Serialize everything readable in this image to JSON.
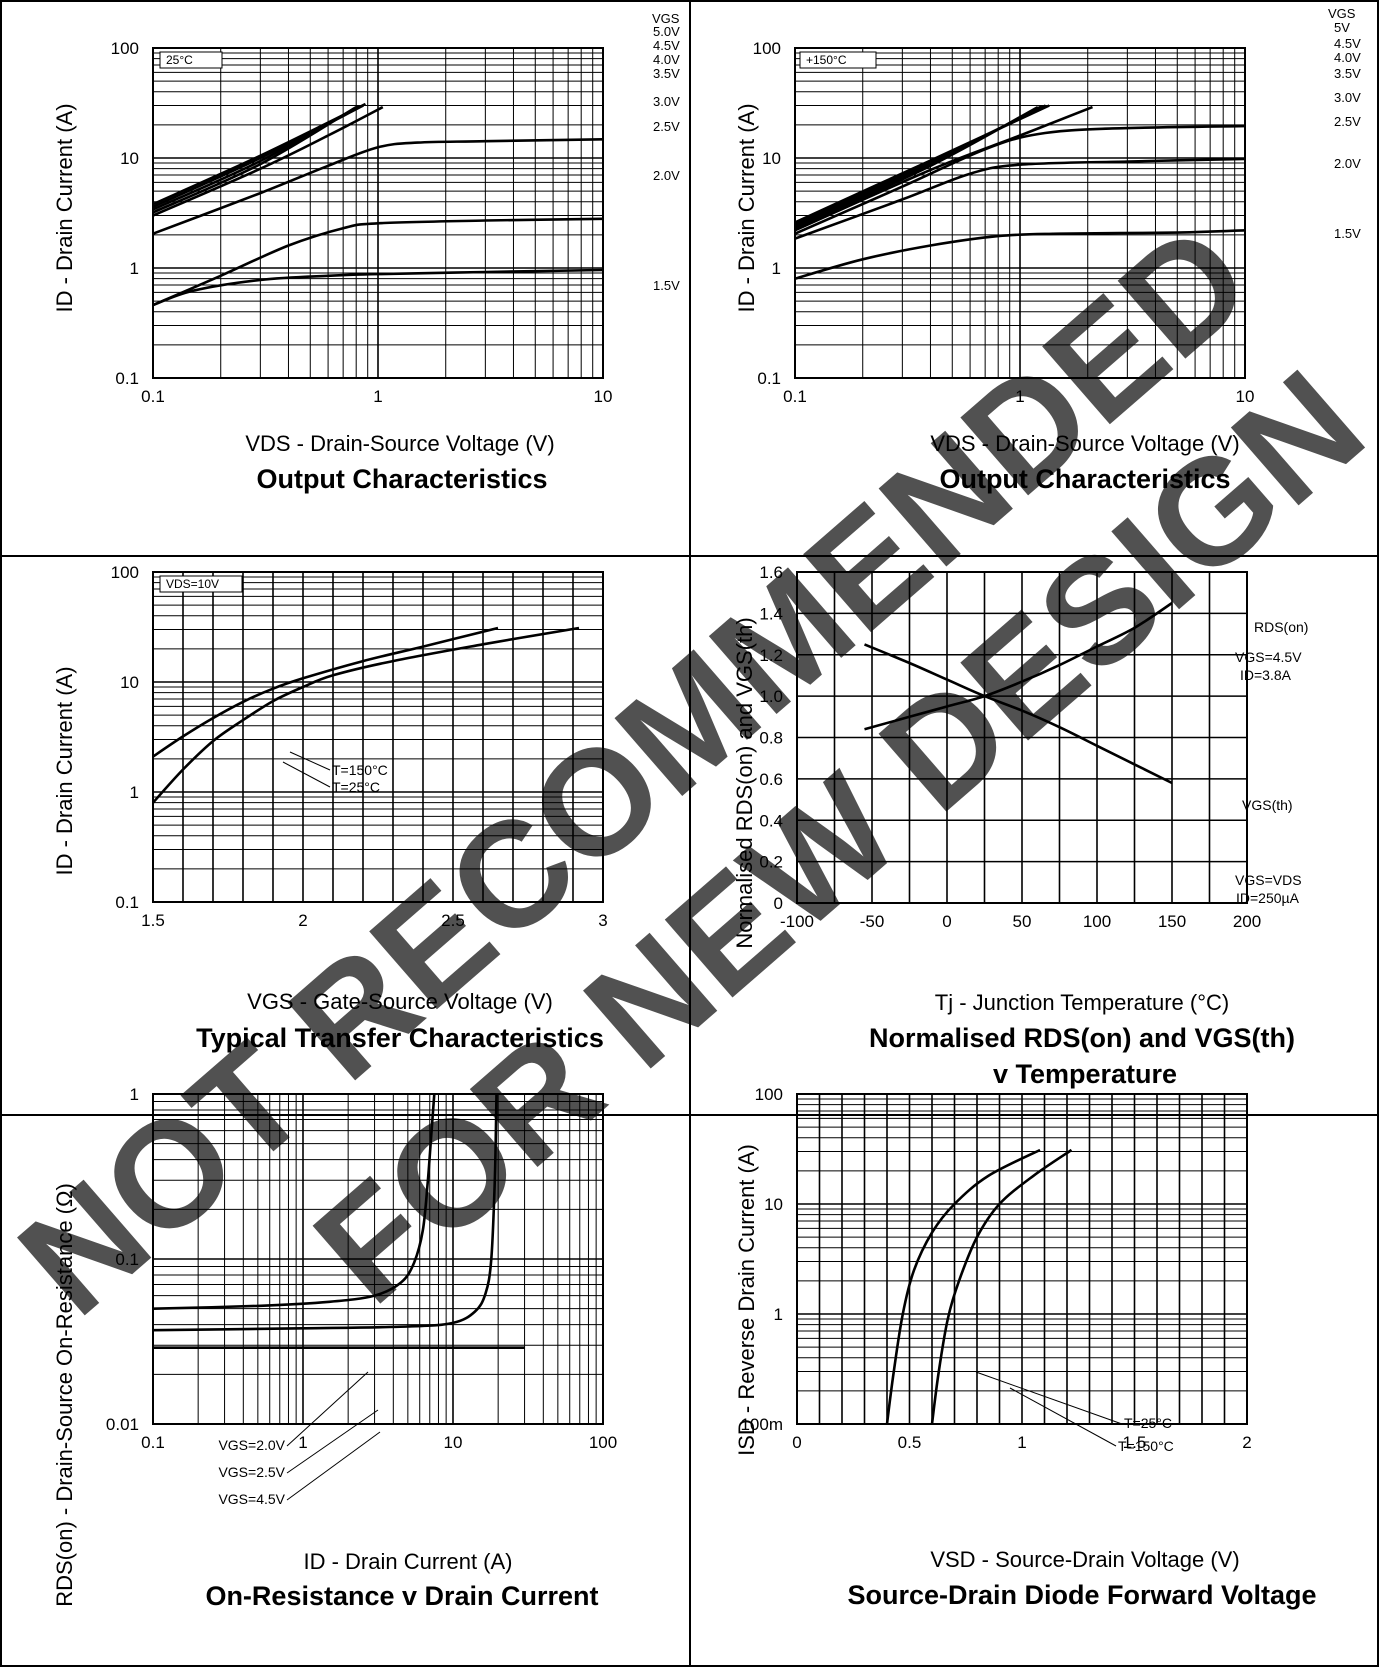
{
  "watermark": {
    "line1": "NOT RECOMMENDED",
    "line2": "FOR NEW DESIGN"
  },
  "chart_data": [
    {
      "type": "line",
      "id": "out25",
      "title": "Output Characteristics",
      "xlabel": "VDS - Drain-Source Voltage (V)",
      "ylabel": "ID - Drain Current (A)",
      "xscale": "log",
      "yscale": "log",
      "xlim": [
        0.1,
        10
      ],
      "ylim": [
        0.1,
        100
      ],
      "xticks": [
        "0.1",
        "1",
        "10"
      ],
      "yticks": [
        "0.1",
        "1",
        "10",
        "100"
      ],
      "annotations": [
        "25°C"
      ],
      "legend_header": "VGS",
      "series": [
        {
          "name": "5.0V",
          "x": [
            0.1,
            0.3,
            0.88
          ],
          "y": [
            3.8,
            10.5,
            31
          ]
        },
        {
          "name": "4.5V",
          "x": [
            0.1,
            0.3,
            0.86
          ],
          "y": [
            3.6,
            10,
            30
          ]
        },
        {
          "name": "4.0V",
          "x": [
            0.1,
            0.3,
            0.82
          ],
          "y": [
            3.4,
            9.4,
            29.5
          ]
        },
        {
          "name": "3.5V",
          "x": [
            0.1,
            0.3,
            0.8
          ],
          "y": [
            3.2,
            8.8,
            29
          ]
        },
        {
          "name": "3.0V",
          "x": [
            0.1,
            0.3,
            0.6,
            1.05
          ],
          "y": [
            3.0,
            8.0,
            16,
            29
          ]
        },
        {
          "name": "2.5V",
          "x": [
            0.1,
            0.3,
            0.6,
            1.0,
            1.5,
            3,
            10
          ],
          "y": [
            2.05,
            4.8,
            8.5,
            12.5,
            13.8,
            14.2,
            14.8
          ]
        },
        {
          "name": "2.0V",
          "x": [
            0.1,
            0.2,
            0.4,
            0.7,
            1.0,
            3,
            10
          ],
          "y": [
            0.46,
            0.85,
            1.6,
            2.3,
            2.55,
            2.7,
            2.8
          ]
        },
        {
          "name": "1.5V",
          "x": [
            0.1,
            0.15,
            0.3,
            0.6,
            1.0,
            3,
            10
          ],
          "y": [
            0.46,
            0.62,
            0.78,
            0.85,
            0.88,
            0.92,
            0.96
          ]
        }
      ]
    },
    {
      "type": "line",
      "id": "out150",
      "title": "Output Characteristics",
      "xlabel": "VDS - Drain-Source Voltage (V)",
      "ylabel": "ID - Drain Current (A)",
      "xscale": "log",
      "yscale": "log",
      "xlim": [
        0.1,
        10
      ],
      "ylim": [
        0.1,
        100
      ],
      "xticks": [
        "0.1",
        "1",
        "10"
      ],
      "yticks": [
        "0.1",
        "1",
        "10",
        "100"
      ],
      "annotations": [
        "+150°C"
      ],
      "legend_header": "VGS",
      "series": [
        {
          "name": "5V",
          "x": [
            0.1,
            0.4,
            1.35
          ],
          "y": [
            2.6,
            9.5,
            30
          ]
        },
        {
          "name": "4.5V",
          "x": [
            0.1,
            0.4,
            1.3
          ],
          "y": [
            2.5,
            9.2,
            30
          ]
        },
        {
          "name": "4.0V",
          "x": [
            0.1,
            0.4,
            1.25
          ],
          "y": [
            2.4,
            8.9,
            29.5
          ]
        },
        {
          "name": "3.5V",
          "x": [
            0.1,
            0.4,
            1.2
          ],
          "y": [
            2.3,
            8.5,
            29
          ]
        },
        {
          "name": "3.0V",
          "x": [
            0.1,
            0.4,
            1.0,
            2.1
          ],
          "y": [
            2.2,
            7.8,
            16,
            29
          ]
        },
        {
          "name": "2.5V",
          "x": [
            0.1,
            0.3,
            0.7,
            1.2,
            2.5,
            10
          ],
          "y": [
            2.05,
            5.5,
            12,
            16.5,
            18.5,
            19.5
          ]
        },
        {
          "name": "2.0V",
          "x": [
            0.1,
            0.3,
            0.6,
            1.0,
            3,
            10
          ],
          "y": [
            1.85,
            4.2,
            7.2,
            8.7,
            9.3,
            9.8
          ]
        },
        {
          "name": "1.5V",
          "x": [
            0.1,
            0.2,
            0.4,
            0.8,
            1.5,
            5,
            10
          ],
          "y": [
            0.8,
            1.2,
            1.6,
            1.95,
            2.05,
            2.1,
            2.2
          ]
        }
      ]
    },
    {
      "type": "line",
      "id": "transfer",
      "title": "Typical Transfer Characteristics",
      "xlabel": "VGS - Gate-Source Voltage (V)",
      "ylabel": "ID - Drain Current (A)",
      "xscale": "linear",
      "yscale": "log",
      "xlim": [
        1.5,
        3
      ],
      "ylim": [
        0.1,
        100
      ],
      "xticks": [
        "1.5",
        "2",
        "2.5",
        "3"
      ],
      "yticks": [
        "0.1",
        "1",
        "10",
        "100"
      ],
      "annotations": [
        "VDS=10V"
      ],
      "series": [
        {
          "name": "T=150°C",
          "x": [
            1.5,
            1.6,
            1.7,
            1.8,
            1.9,
            2.0,
            2.2,
            2.4,
            2.65
          ],
          "y": [
            2.1,
            3.2,
            4.7,
            6.6,
            8.7,
            10.8,
            15.5,
            21,
            31
          ]
        },
        {
          "name": "T=25°C",
          "x": [
            1.5,
            1.6,
            1.7,
            1.8,
            1.9,
            2.0,
            2.1,
            2.3,
            2.6,
            2.92
          ],
          "y": [
            0.8,
            1.6,
            2.9,
            4.5,
            6.7,
            9.0,
            11.5,
            15.5,
            22,
            31
          ]
        }
      ]
    },
    {
      "type": "line",
      "id": "temp",
      "title": "Normalised RDS(on) and VGS(th)",
      "subtitle": "v Temperature",
      "xlabel": "Tj - Junction Temperature (°C)",
      "ylabel": "Normalised RDS(on) and VGS(th)",
      "xscale": "linear",
      "yscale": "linear",
      "xlim": [
        -100,
        200
      ],
      "ylim": [
        0,
        1.6
      ],
      "xticks": [
        "-100",
        "-50",
        "0",
        "50",
        "100",
        "150",
        "200"
      ],
      "yticks": [
        "0",
        "0.2",
        "0.4",
        "0.6",
        "0.8",
        "1.0",
        "1.2",
        "1.4",
        "1.6"
      ],
      "annotations": [
        "VGS=4.5V",
        "ID=3.8A",
        "VGS=VDS",
        "ID=250µA"
      ],
      "series": [
        {
          "name": "RDS(on)",
          "x": [
            -55,
            -25,
            0,
            25,
            50,
            75,
            100,
            125,
            150
          ],
          "y": [
            0.84,
            0.9,
            0.95,
            1.0,
            1.07,
            1.15,
            1.24,
            1.33,
            1.45
          ]
        },
        {
          "name": "VGS(th)",
          "x": [
            -55,
            -25,
            0,
            25,
            50,
            75,
            100,
            125,
            150
          ],
          "y": [
            1.25,
            1.16,
            1.08,
            1.0,
            0.93,
            0.85,
            0.76,
            0.67,
            0.58
          ]
        }
      ]
    },
    {
      "type": "line",
      "id": "onres",
      "title": "On-Resistance v Drain Current",
      "xlabel": "ID - Drain Current (A)",
      "ylabel": "RDS(on) - Drain-Source On-Resistance (Ω)",
      "xscale": "log",
      "yscale": "log",
      "xlim": [
        0.1,
        100
      ],
      "ylim": [
        0.01,
        1
      ],
      "xticks": [
        "0.1",
        "1",
        "10",
        "100"
      ],
      "yticks": [
        "0.01",
        "0.1",
        "1"
      ],
      "series": [
        {
          "name": "VGS=2.0V",
          "x": [
            0.1,
            0.5,
            1.5,
            3,
            4.5,
            5.5,
            6.3,
            6.8,
            7.2,
            7.5
          ],
          "y": [
            0.05,
            0.052,
            0.055,
            0.06,
            0.072,
            0.095,
            0.15,
            0.3,
            0.6,
            1.0
          ]
        },
        {
          "name": "VGS=2.5V",
          "x": [
            0.1,
            1,
            5,
            10,
            14,
            16.5,
            18,
            19,
            19.5
          ],
          "y": [
            0.037,
            0.038,
            0.039,
            0.041,
            0.048,
            0.062,
            0.1,
            0.3,
            1.0
          ]
        },
        {
          "name": "VGS=4.5V",
          "x": [
            0.1,
            1,
            10,
            30
          ],
          "y": [
            0.029,
            0.029,
            0.029,
            0.029
          ]
        }
      ]
    },
    {
      "type": "line",
      "id": "diode",
      "title": "Source-Drain Diode Forward Voltage",
      "xlabel": "VSD - Source-Drain Voltage (V)",
      "ylabel": "ISD - Reverse Drain Current (A)",
      "xscale": "linear",
      "yscale": "log",
      "xlim": [
        0,
        2
      ],
      "ylim": [
        0.1,
        100
      ],
      "xticks": [
        "0",
        "0.5",
        "1",
        "1.5",
        "2"
      ],
      "yticks": [
        "100m",
        "1",
        "10",
        "100"
      ],
      "series": [
        {
          "name": "T=25°C",
          "x": [
            0.6,
            0.63,
            0.67,
            0.72,
            0.8,
            0.9,
            1.05,
            1.22
          ],
          "y": [
            0.1,
            0.3,
            0.9,
            2.0,
            5.0,
            10,
            18,
            31
          ]
        },
        {
          "name": "T=150°C",
          "x": [
            0.4,
            0.43,
            0.47,
            0.52,
            0.6,
            0.7,
            0.85,
            1.08
          ],
          "y": [
            0.1,
            0.3,
            1.0,
            2.5,
            5.5,
            10,
            18,
            31
          ]
        }
      ]
    }
  ]
}
